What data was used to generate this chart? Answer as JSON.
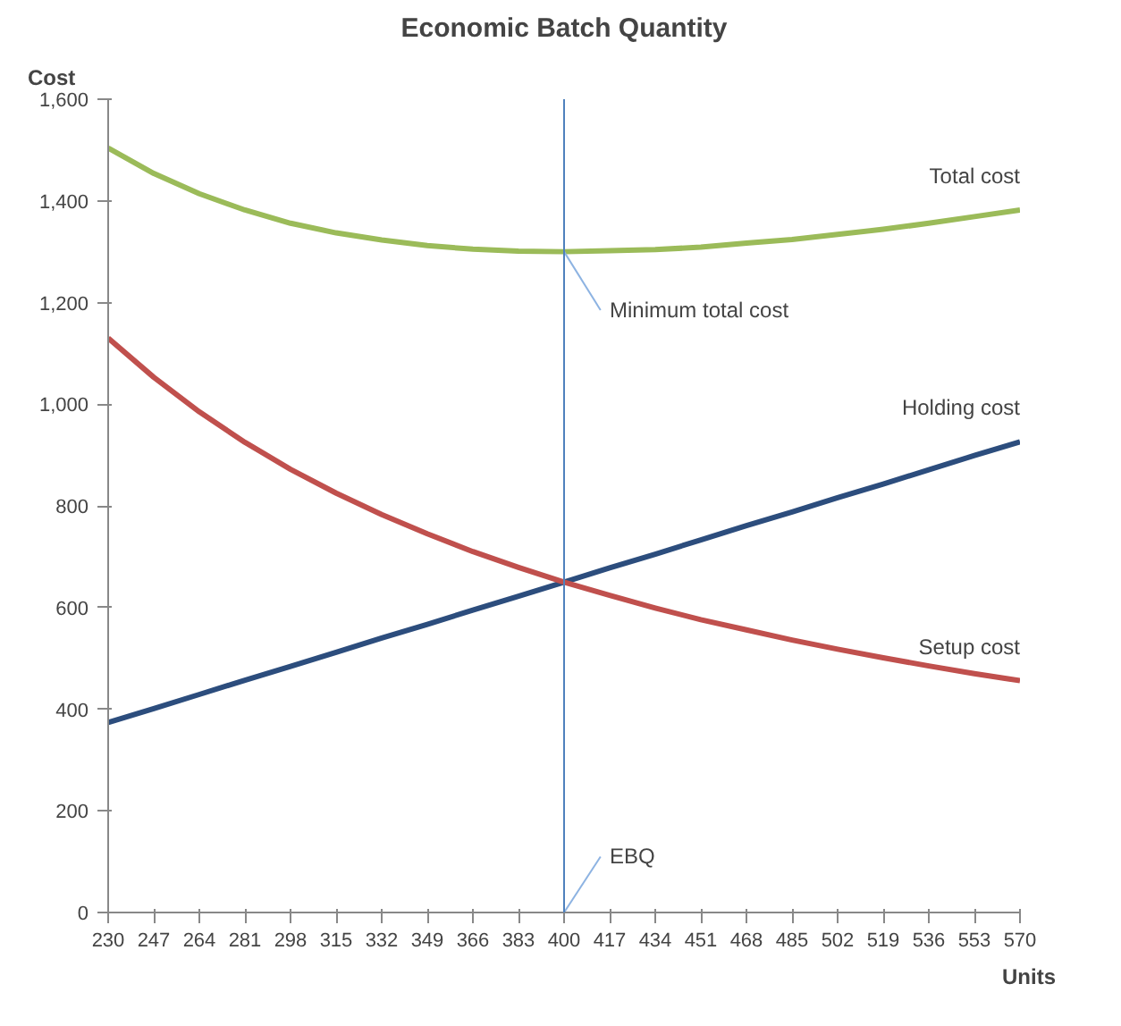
{
  "chart_data": {
    "type": "line",
    "title": "Economic Batch Quantity",
    "xlabel": "Units",
    "ylabel": "Cost",
    "categories": [
      "230",
      "247",
      "264",
      "281",
      "298",
      "315",
      "332",
      "349",
      "366",
      "383",
      "400",
      "417",
      "434",
      "451",
      "468",
      "485",
      "502",
      "519",
      "536",
      "553",
      "570"
    ],
    "series": [
      {
        "name": "Total cost",
        "color": "#9bbb59",
        "values": [
          1504,
          1454,
          1414,
          1382,
          1356,
          1337,
          1323,
          1312,
          1305,
          1301,
          1300,
          1302,
          1304,
          1309,
          1317,
          1324,
          1334,
          1344,
          1356,
          1369,
          1382
        ]
      },
      {
        "name": "Holding cost",
        "color": "#2c4d7d",
        "values": [
          374,
          401,
          429,
          457,
          484,
          512,
          540,
          567,
          595,
          622,
          650,
          678,
          705,
          733,
          761,
          788,
          816,
          843,
          871,
          899,
          926
        ]
      },
      {
        "name": "Setup cost",
        "color": "#c0504d",
        "values": [
          1130,
          1053,
          985,
          925,
          872,
          825,
          783,
          745,
          710,
          679,
          650,
          624,
          599,
          576,
          556,
          536,
          518,
          501,
          485,
          470,
          456
        ]
      }
    ],
    "ylim": [
      0,
      1600
    ],
    "yticks": [
      0,
      200,
      400,
      600,
      800,
      {
        "value": 1000,
        "label": "1,000"
      },
      {
        "value": 1200,
        "label": "1,200"
      },
      {
        "value": 1400,
        "label": "1,400"
      },
      {
        "value": 1600,
        "label": "1,600"
      }
    ],
    "ref_lines": [
      {
        "axis": "x",
        "value": "400",
        "color": "#4f81bd"
      }
    ],
    "annotations": [
      {
        "text": "Minimum total cost",
        "x": "400",
        "y": 1300
      },
      {
        "text": "EBQ",
        "x": "400",
        "y": 0
      }
    ],
    "grid": false,
    "marker": "none",
    "line_style": "solid"
  }
}
